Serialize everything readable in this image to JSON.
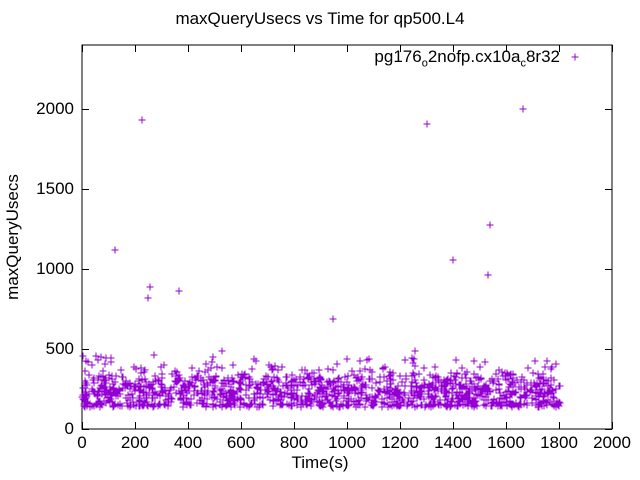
{
  "window": {
    "background": "#ffffff"
  },
  "chart_data": {
    "type": "scatter",
    "title": "maxQueryUsecs vs Time for qp500.L4",
    "xlabel": "Time(s)",
    "ylabel": "maxQueryUsecs",
    "xlim": [
      0,
      2000
    ],
    "ylim": [
      0,
      2400
    ],
    "xticks": [
      0,
      200,
      400,
      600,
      800,
      1000,
      1200,
      1400,
      1600,
      1800,
      2000
    ],
    "yticks": [
      0,
      500,
      1000,
      1500,
      2000
    ],
    "grid": false,
    "marker": {
      "shape": "plus",
      "color": "#9400D3",
      "size": 7
    },
    "legend": {
      "position": "top-right-inside",
      "label_plain": "pg176_o2nofp.cx10a_c8r32",
      "label_parts": [
        {
          "text": "pg176"
        },
        {
          "text": "o",
          "subscript": true
        },
        {
          "text": "2nofp.cx10a"
        },
        {
          "text": "c",
          "subscript": true
        },
        {
          "text": "8r32"
        }
      ]
    },
    "series": [
      {
        "name": "pg176_o2nofp.cx10a_c8r32",
        "outlier_points": [
          [
            126,
            1120
          ],
          [
            228,
            1930
          ],
          [
            250,
            818
          ],
          [
            258,
            888
          ],
          [
            365,
            865
          ],
          [
            947,
            690
          ],
          [
            1300,
            1905
          ],
          [
            1401,
            1055
          ],
          [
            1533,
            960
          ],
          [
            1540,
            1275
          ],
          [
            1665,
            2000
          ]
        ],
        "upper_points": [
          [
            5,
            455
          ],
          [
            23,
            418
          ],
          [
            38,
            400
          ],
          [
            60,
            430
          ],
          [
            73,
            452
          ],
          [
            86,
            404
          ],
          [
            108,
            420
          ],
          [
            270,
            463
          ],
          [
            311,
            400
          ],
          [
            468,
            406
          ],
          [
            508,
            390
          ],
          [
            528,
            488
          ],
          [
            640,
            372
          ],
          [
            704,
            398
          ],
          [
            712,
            386
          ],
          [
            1000,
            440
          ],
          [
            1048,
            362
          ],
          [
            1088,
            368
          ],
          [
            1162,
            355
          ],
          [
            1258,
            490
          ],
          [
            1478,
            428
          ],
          [
            1709,
            427
          ],
          [
            1741,
            346
          ],
          [
            1756,
            427
          ],
          [
            1771,
            373
          ]
        ],
        "band": {
          "x_min": 0,
          "x_max": 1805,
          "count": 1400,
          "seed": 1234567,
          "tiers": [
            {
              "p": 0.18,
              "y_min": 138,
              "y_max": 158
            },
            {
              "p": 0.52,
              "y_min": 158,
              "y_max": 272
            },
            {
              "p": 0.22,
              "y_min": 272,
              "y_max": 332
            },
            {
              "p": 0.07,
              "y_min": 332,
              "y_max": 392
            },
            {
              "p": 0.01,
              "y_min": 392,
              "y_max": 455
            }
          ]
        }
      }
    ]
  }
}
